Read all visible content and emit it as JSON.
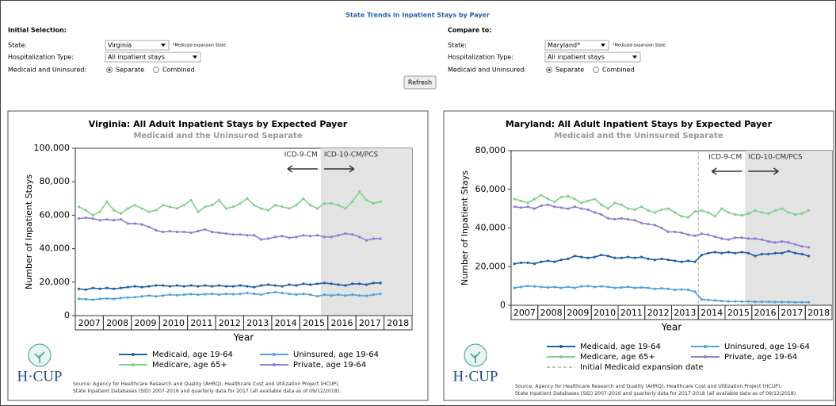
{
  "header": {
    "title": "State Trends in Inpatient Stays by Payer"
  },
  "forms": [
    {
      "heading": "Initial Selection:",
      "state_label": "State:",
      "state": "Virginia",
      "state_note": "*Medicaid expansion State",
      "type_label": "Hospitalization Type:",
      "type": "All inpatient stays",
      "mi_label": "Medicaid and Uninsured:",
      "option1": "Separate",
      "option2": "Combined"
    },
    {
      "heading": "Compare to:",
      "state_label": "State:",
      "state": "Maryland*",
      "state_note": "*Medicaid expansion State",
      "type_label": "Hospitalization Type:",
      "type": "All inpatient stays",
      "mi_label": "Medicaid and Uninsured:",
      "option1": "Separate",
      "option2": "Combined"
    }
  ],
  "refresh": "Refresh",
  "chart_data": [
    {
      "type": "line",
      "title": "Virginia: All Adult Inpatient Stays by Expected Payer",
      "subtitle": "Medicaid and the Uninsured Separate",
      "xlabel": "Year",
      "ylabel": "Number of Inpatient Stays",
      "x": [
        2007.125,
        2007.375,
        2007.625,
        2007.875,
        2008.125,
        2008.375,
        2008.625,
        2008.875,
        2009.125,
        2009.375,
        2009.625,
        2009.875,
        2010.125,
        2010.375,
        2010.625,
        2010.875,
        2011.125,
        2011.375,
        2011.625,
        2011.875,
        2012.125,
        2012.375,
        2012.625,
        2012.875,
        2013.125,
        2013.375,
        2013.625,
        2013.875,
        2014.125,
        2014.375,
        2014.625,
        2014.875,
        2015.125,
        2015.375,
        2015.625,
        2015.875,
        2016.125,
        2016.375,
        2016.625,
        2016.875,
        2017.125,
        2017.375,
        2017.625,
        2017.875
      ],
      "xlim": [
        2007,
        2019
      ],
      "xticks": [
        {
          "value": 2007.5,
          "label": "2007"
        },
        {
          "value": 2008.5,
          "label": "2008"
        },
        {
          "value": 2009.5,
          "label": "2009"
        },
        {
          "value": 2010.5,
          "label": "2010"
        },
        {
          "value": 2011.5,
          "label": "2011"
        },
        {
          "value": 2012.5,
          "label": "2012"
        },
        {
          "value": 2013.5,
          "label": "2013"
        },
        {
          "value": 2014.5,
          "label": "2014"
        },
        {
          "value": 2015.5,
          "label": "2015"
        },
        {
          "value": 2016.5,
          "label": "2016"
        },
        {
          "value": 2017.5,
          "label": "2017"
        },
        {
          "value": 2018.5,
          "label": "2018"
        }
      ],
      "ylim": [
        0,
        100000
      ],
      "yticks": [
        0,
        {
          "value": 20000,
          "label": "20,000"
        },
        {
          "value": 40000,
          "label": "40,000"
        },
        {
          "value": 60000,
          "label": "60,000"
        },
        {
          "value": 80000,
          "label": "80,000"
        },
        {
          "value": 100000,
          "label": "100,000"
        }
      ],
      "shade": [
        2015.75,
        2019
      ],
      "annotations": [
        "ICD-9-CM",
        "ICD-10-CM/PCS"
      ],
      "series": [
        {
          "name": "Medicaid, age 19-64",
          "color": "#1f5fa8",
          "values": [
            16000,
            15500,
            16500,
            16000,
            16500,
            16000,
            16500,
            17000,
            17500,
            17000,
            17500,
            18000,
            18000,
            17500,
            18000,
            17500,
            18000,
            17500,
            18000,
            17500,
            18000,
            17500,
            17500,
            18000,
            17500,
            17000,
            18000,
            18500,
            18000,
            17500,
            18500,
            18000,
            19000,
            18500,
            19000,
            19500,
            19000,
            18500,
            18000,
            19000,
            19000,
            18500,
            19500,
            19500
          ]
        },
        {
          "name": "Uninsured, age 19-64",
          "color": "#4fa3d9",
          "values": [
            10000,
            9800,
            9500,
            10000,
            10200,
            10000,
            10500,
            10800,
            11000,
            11500,
            12000,
            11500,
            12000,
            12500,
            12200,
            12500,
            12800,
            12500,
            12800,
            13000,
            12500,
            13000,
            12800,
            13000,
            13500,
            13000,
            12500,
            13500,
            14000,
            13500,
            13000,
            12500,
            13000,
            12500,
            11500,
            12500,
            12000,
            12500,
            12000,
            12500,
            12000,
            11800,
            12500,
            13000
          ]
        },
        {
          "name": "Medicare, age 65+",
          "color": "#7fd08a",
          "values": [
            65000,
            63000,
            60000,
            62000,
            68000,
            63000,
            61000,
            64000,
            66000,
            64000,
            62000,
            63000,
            66000,
            65000,
            64000,
            66000,
            69000,
            62000,
            65000,
            66000,
            69000,
            64000,
            65000,
            67000,
            70000,
            66000,
            64000,
            63000,
            66000,
            65000,
            64000,
            66000,
            70000,
            66000,
            64000,
            67000,
            67000,
            66000,
            64000,
            68000,
            74000,
            69000,
            67000,
            68000
          ]
        },
        {
          "name": "Private, age 19-64",
          "color": "#8a7fd6",
          "values": [
            58000,
            58500,
            58000,
            57000,
            57500,
            57000,
            57500,
            55000,
            55000,
            54500,
            53000,
            51000,
            50000,
            50500,
            50000,
            50000,
            49500,
            50500,
            51500,
            50000,
            49500,
            49000,
            48500,
            48500,
            48000,
            48000,
            45500,
            46000,
            47000,
            47500,
            46500,
            47000,
            48000,
            47500,
            48000,
            47000,
            47000,
            48000,
            49000,
            48500,
            47000,
            45000,
            46000,
            46000
          ]
        }
      ],
      "logo": "H·CUP",
      "source": [
        "Source: Agency for Healthcare Research and Quality (AHRQ), Healthcare Cost and Utilization Project (HCUP),",
        "State Inpatient Databases (SID) 2007-2016 and quarterly data for 2017 (all available data as of 09/12/2018)."
      ]
    },
    {
      "type": "line",
      "title": "Maryland: All Adult Inpatient Stays by Expected Payer",
      "subtitle": "Medicaid and the Uninsured Separate",
      "xlabel": "Year",
      "ylabel": "Number of Inpatient Stays",
      "x": [
        2007.125,
        2007.375,
        2007.625,
        2007.875,
        2008.125,
        2008.375,
        2008.625,
        2008.875,
        2009.125,
        2009.375,
        2009.625,
        2009.875,
        2010.125,
        2010.375,
        2010.625,
        2010.875,
        2011.125,
        2011.375,
        2011.625,
        2011.875,
        2012.125,
        2012.375,
        2012.625,
        2012.875,
        2013.125,
        2013.375,
        2013.625,
        2013.875,
        2014.125,
        2014.375,
        2014.625,
        2014.875,
        2015.125,
        2015.375,
        2015.625,
        2015.875,
        2016.125,
        2016.375,
        2016.625,
        2016.875,
        2017.125,
        2017.375,
        2017.625,
        2017.875,
        2018.125
      ],
      "xlim": [
        2007,
        2019
      ],
      "xticks": [
        {
          "value": 2007.5,
          "label": "2007"
        },
        {
          "value": 2008.5,
          "label": "2008"
        },
        {
          "value": 2009.5,
          "label": "2009"
        },
        {
          "value": 2010.5,
          "label": "2010"
        },
        {
          "value": 2011.5,
          "label": "2011"
        },
        {
          "value": 2012.5,
          "label": "2012"
        },
        {
          "value": 2013.5,
          "label": "2013"
        },
        {
          "value": 2014.5,
          "label": "2014"
        },
        {
          "value": 2015.5,
          "label": "2015"
        },
        {
          "value": 2016.5,
          "label": "2016"
        },
        {
          "value": 2017.5,
          "label": "2017"
        },
        {
          "value": 2018.5,
          "label": "2018"
        }
      ],
      "ylim": [
        0,
        80000
      ],
      "yticks": [
        0,
        {
          "value": 20000,
          "label": "20,000"
        },
        {
          "value": 40000,
          "label": "40,000"
        },
        {
          "value": 60000,
          "label": "60,000"
        },
        {
          "value": 80000,
          "label": "80,000"
        }
      ],
      "shade": [
        2015.75,
        2019
      ],
      "annotations": [
        "ICD-9-CM",
        "ICD-10-CM/PCS"
      ],
      "reference_lines": [
        {
          "name": "Initial Medicaid expansion date",
          "x": 2014,
          "color": "#aaaaaa"
        }
      ],
      "series": [
        {
          "name": "Medicaid, age 19-64",
          "color": "#1f5fa8",
          "values": [
            21500,
            22000,
            22000,
            21500,
            22500,
            23000,
            22500,
            23500,
            24000,
            25500,
            25000,
            24500,
            25000,
            26000,
            25500,
            24500,
            24500,
            25000,
            24500,
            25000,
            24000,
            23500,
            24000,
            23500,
            23000,
            22500,
            23000,
            22500,
            26000,
            27000,
            27500,
            27000,
            27500,
            27000,
            27500,
            27000,
            25500,
            26500,
            26500,
            27000,
            27000,
            28000,
            27000,
            26500,
            25500
          ]
        },
        {
          "name": "Uninsured, age 19-64",
          "color": "#4fa3d9",
          "values": [
            9000,
            9500,
            10000,
            9800,
            9500,
            9200,
            9500,
            9000,
            9500,
            9000,
            9800,
            10000,
            9500,
            9800,
            9500,
            9000,
            9200,
            9500,
            9000,
            9200,
            9000,
            8500,
            8800,
            8500,
            8000,
            8200,
            8000,
            7000,
            3000,
            2800,
            2500,
            2200,
            2000,
            2000,
            1900,
            2000,
            1800,
            1800,
            1800,
            1700,
            1700,
            1700,
            1600,
            1600,
            1600
          ]
        },
        {
          "name": "Medicare, age 65+",
          "color": "#7fd08a",
          "values": [
            55000,
            54000,
            53000,
            55000,
            57000,
            55000,
            53500,
            56000,
            56500,
            55000,
            53000,
            54000,
            55000,
            52000,
            50000,
            53000,
            52000,
            50000,
            49500,
            51000,
            49000,
            48000,
            49500,
            50000,
            48000,
            46000,
            45500,
            48500,
            49000,
            48000,
            46000,
            50000,
            48000,
            47000,
            46500,
            47500,
            49000,
            48000,
            47500,
            49000,
            50000,
            48000,
            47000,
            47500,
            49000
          ]
        },
        {
          "name": "Private, age 19-64",
          "color": "#8a7fd6",
          "values": [
            51000,
            50500,
            51000,
            50000,
            51500,
            52000,
            51000,
            50500,
            50000,
            51000,
            50000,
            49500,
            48000,
            47000,
            45000,
            44500,
            45000,
            44500,
            44000,
            42500,
            42000,
            41500,
            40000,
            38000,
            38000,
            37500,
            36500,
            36000,
            37000,
            36500,
            35500,
            34500,
            34000,
            35000,
            35000,
            34500,
            34500,
            34000,
            33000,
            32500,
            33000,
            32500,
            31500,
            30500,
            30000
          ]
        }
      ],
      "logo": "H·CUP",
      "source": [
        "Source: Agency for Healthcare Research and Quality (AHRQ), Healthcare Cost and Utilization Project (HCUP),",
        "State Inpatient Databases (SID) 2007-2016 and quarterly data for 2017-2018 (all available data as of 09/12/2018)."
      ]
    }
  ]
}
